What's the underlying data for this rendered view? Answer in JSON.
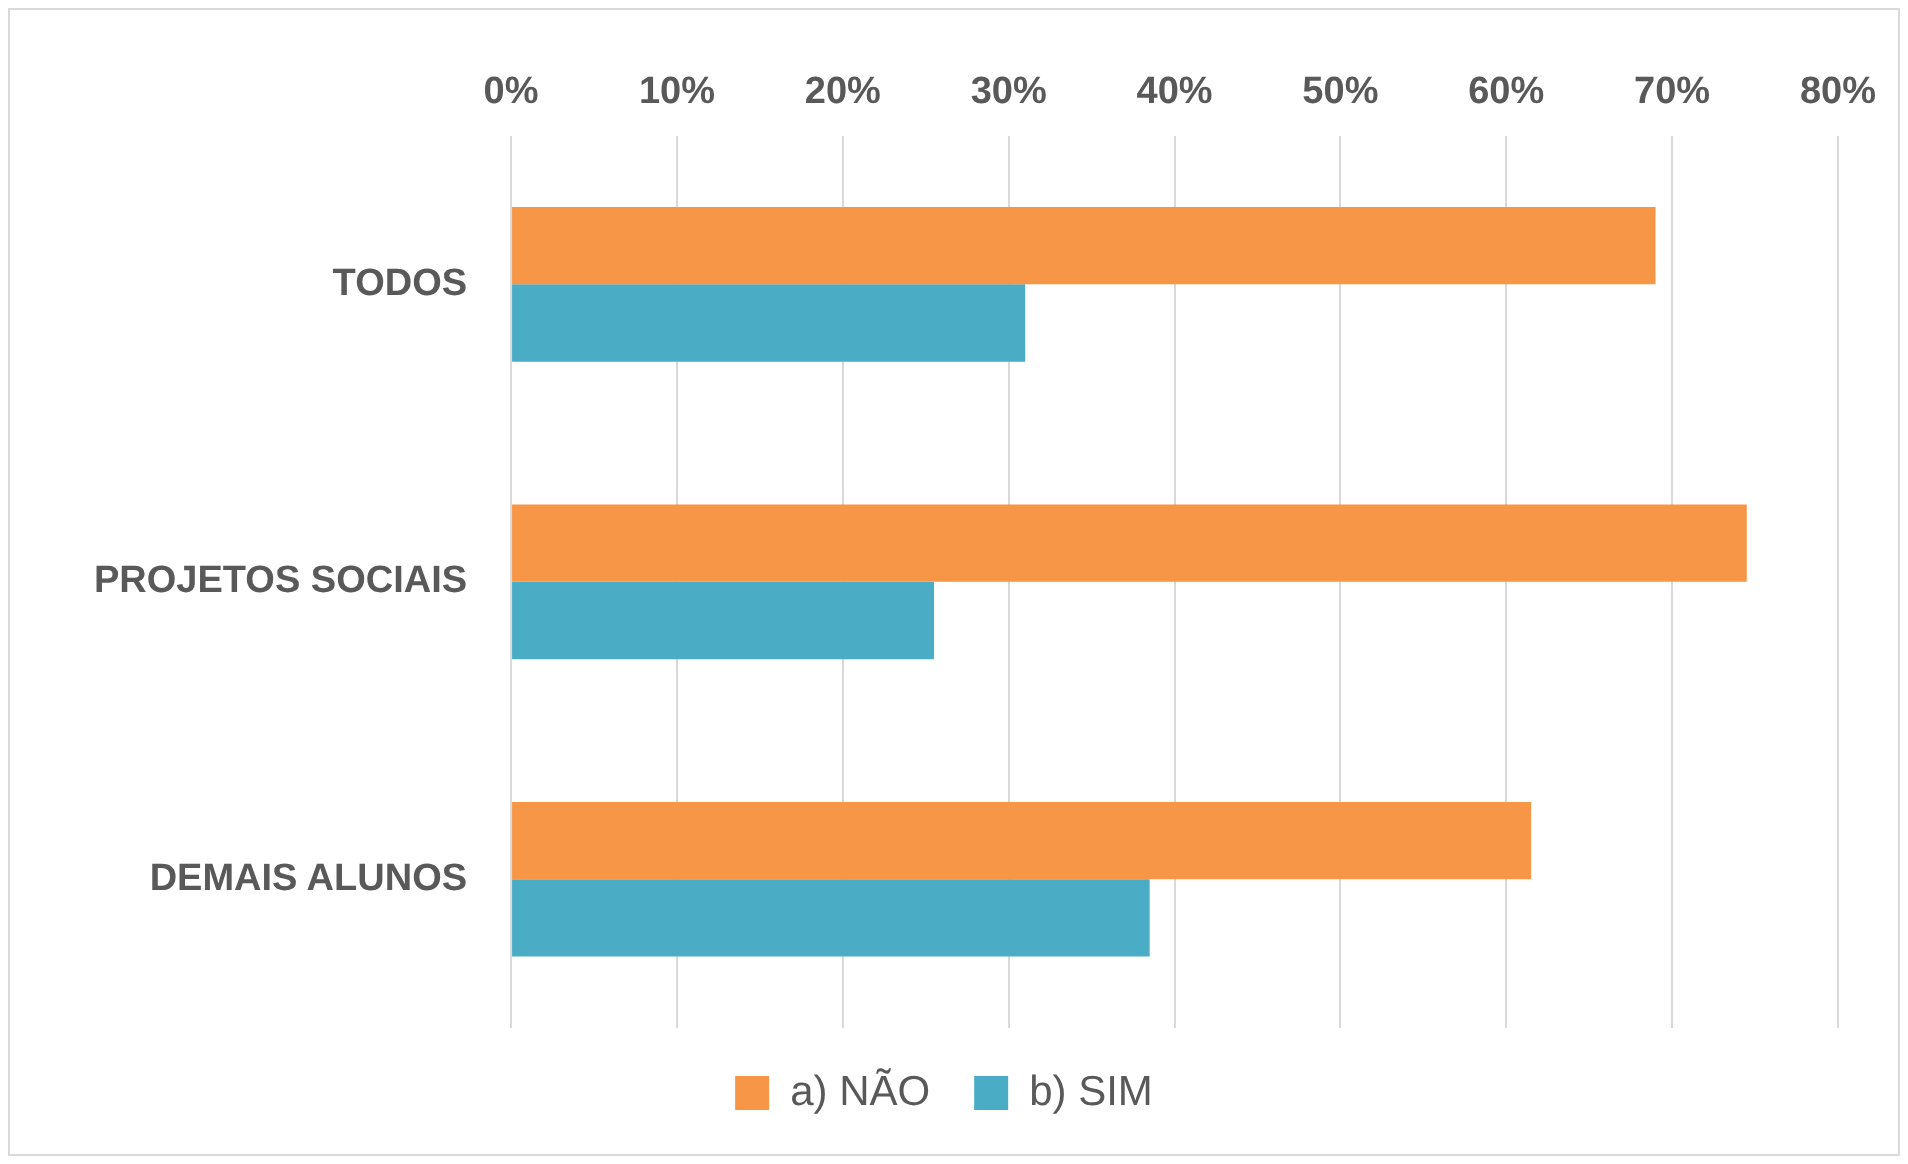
{
  "chart_data": {
    "type": "bar",
    "orientation": "horizontal",
    "categories": [
      "TODOS",
      "PROJETOS SOCIAIS",
      "DEMAIS ALUNOS"
    ],
    "series": [
      {
        "name": "a) NÃO",
        "color": "#f79646",
        "values": [
          69,
          74.5,
          61.5
        ]
      },
      {
        "name": "b) SIM",
        "color": "#4bacc6",
        "values": [
          31,
          25.5,
          38.5
        ]
      }
    ],
    "xlim": [
      0,
      80
    ],
    "xticks": [
      {
        "value": 0,
        "label": "0%"
      },
      {
        "value": 10,
        "label": "10%"
      },
      {
        "value": 20,
        "label": "20%"
      },
      {
        "value": 30,
        "label": "30%"
      },
      {
        "value": 40,
        "label": "40%"
      },
      {
        "value": 50,
        "label": "50%"
      },
      {
        "value": 60,
        "label": "60%"
      },
      {
        "value": 70,
        "label": "70%"
      },
      {
        "value": 80,
        "label": "80%"
      }
    ],
    "grid": "x",
    "legend": "bottom"
  }
}
